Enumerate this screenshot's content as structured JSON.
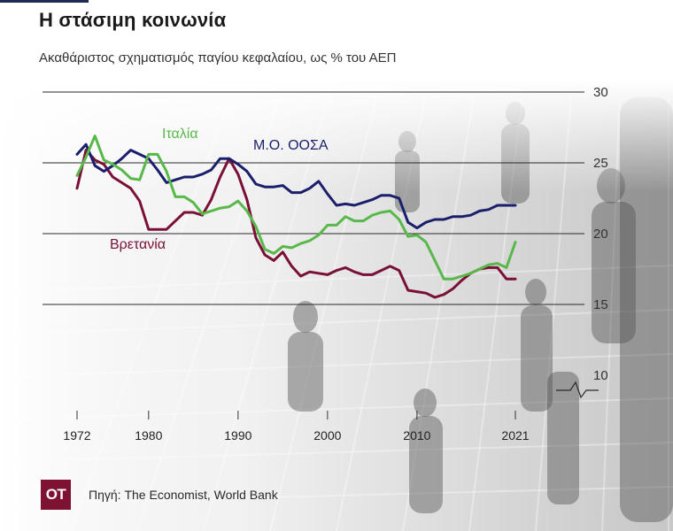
{
  "title": "Η στάσιμη κοινωνία",
  "subtitle": "Ακαθάριστος σχηματισμός παγίου κεφαλαίου, ως % του ΑΕΠ",
  "footer": {
    "logo_text": "OT",
    "source": "Πηγή: The Economist, World Bank"
  },
  "colors": {
    "oecd": "#1b1f6b",
    "italy": "#58b84a",
    "uk": "#7a1037",
    "grid": "#2a2a2a"
  },
  "chart_data": {
    "type": "line",
    "title": "Η στάσιμη κοινωνία",
    "subtitle": "Ακαθάριστος σχηματισμός παγίου κεφαλαίου, ως % του ΑΕΠ",
    "xlabel": "",
    "ylabel": "",
    "xlim": [
      1972,
      2021
    ],
    "ylim": [
      10,
      30
    ],
    "x_ticks": [
      1972,
      1980,
      1990,
      2000,
      2010,
      2021
    ],
    "y_ticks": [
      30,
      25,
      20,
      15,
      10
    ],
    "y_axis_side": "right",
    "axis_break": true,
    "grid": true,
    "series": [
      {
        "name": "Μ.Ο. ΟΟΣΑ",
        "key": "oecd",
        "x": [
          1972,
          1973,
          1974,
          1975,
          1976,
          1977,
          1978,
          1979,
          1980,
          1981,
          1982,
          1983,
          1984,
          1985,
          1986,
          1987,
          1988,
          1989,
          1990,
          1991,
          1992,
          1993,
          1994,
          1995,
          1996,
          1997,
          1998,
          1999,
          2000,
          2001,
          2002,
          2003,
          2004,
          2005,
          2006,
          2007,
          2008,
          2009,
          2010,
          2011,
          2012,
          2013,
          2014,
          2015,
          2016,
          2017,
          2018,
          2019,
          2020,
          2021
        ],
        "values": [
          25.6,
          26.3,
          24.8,
          24.4,
          24.8,
          25.3,
          25.9,
          25.6,
          25.3,
          24.5,
          23.6,
          23.8,
          24.0,
          24.0,
          24.2,
          24.5,
          25.3,
          25.3,
          24.9,
          24.4,
          23.5,
          23.3,
          23.3,
          23.4,
          22.9,
          22.9,
          23.2,
          23.7,
          22.8,
          22.0,
          22.1,
          22.0,
          22.2,
          22.4,
          22.7,
          22.7,
          22.5,
          20.8,
          20.4,
          20.8,
          21.0,
          21.0,
          21.2,
          21.2,
          21.3,
          21.6,
          21.7,
          22.0,
          22.0,
          22.0
        ]
      },
      {
        "name": "Ιταλία",
        "key": "italy",
        "x": [
          1972,
          1973,
          1974,
          1975,
          1976,
          1977,
          1978,
          1979,
          1980,
          1981,
          1982,
          1983,
          1984,
          1985,
          1986,
          1987,
          1988,
          1989,
          1990,
          1991,
          1992,
          1993,
          1994,
          1995,
          1996,
          1997,
          1998,
          1999,
          2000,
          2001,
          2002,
          2003,
          2004,
          2005,
          2006,
          2007,
          2008,
          2009,
          2010,
          2011,
          2012,
          2013,
          2014,
          2015,
          2016,
          2017,
          2018,
          2019,
          2020,
          2021
        ],
        "values": [
          24.1,
          25.4,
          26.9,
          25.2,
          24.9,
          24.5,
          23.9,
          23.8,
          25.6,
          25.6,
          24.4,
          22.6,
          22.6,
          22.2,
          21.4,
          21.6,
          21.8,
          21.9,
          22.3,
          21.6,
          20.5,
          18.9,
          18.6,
          19.1,
          19.0,
          19.3,
          19.5,
          19.9,
          20.6,
          20.6,
          21.2,
          20.9,
          20.9,
          21.3,
          21.5,
          21.6,
          21.0,
          19.8,
          19.9,
          19.4,
          18.1,
          16.8,
          16.8,
          17.0,
          17.2,
          17.5,
          17.8,
          17.9,
          17.6,
          19.4
        ]
      },
      {
        "name": "Βρετανία",
        "key": "uk",
        "x": [
          1972,
          1973,
          1974,
          1975,
          1976,
          1977,
          1978,
          1979,
          1980,
          1981,
          1982,
          1983,
          1984,
          1985,
          1986,
          1987,
          1988,
          1989,
          1990,
          1991,
          1992,
          1993,
          1994,
          1995,
          1996,
          1997,
          1998,
          1999,
          2000,
          2001,
          2002,
          2003,
          2004,
          2005,
          2006,
          2007,
          2008,
          2009,
          2010,
          2011,
          2012,
          2013,
          2014,
          2015,
          2016,
          2017,
          2018,
          2019,
          2020,
          2021
        ],
        "values": [
          23.2,
          25.9,
          25.2,
          24.9,
          24.0,
          23.6,
          23.2,
          22.3,
          20.3,
          20.3,
          20.3,
          20.9,
          21.5,
          21.5,
          21.3,
          22.4,
          24.0,
          25.3,
          24.2,
          22.4,
          19.7,
          18.5,
          18.1,
          18.7,
          17.7,
          17.0,
          17.3,
          17.2,
          17.1,
          17.4,
          17.6,
          17.3,
          17.1,
          17.1,
          17.4,
          17.7,
          17.4,
          16.0,
          15.9,
          15.8,
          15.5,
          15.7,
          16.1,
          16.7,
          17.2,
          17.5,
          17.6,
          17.6,
          16.8,
          16.8
        ]
      }
    ],
    "series_labels": [
      {
        "key": "italy",
        "text": "Ιταλία"
      },
      {
        "key": "oecd",
        "text": "Μ.Ο. ΟΟΣΑ"
      },
      {
        "key": "uk",
        "text": "Βρετανία"
      }
    ]
  }
}
